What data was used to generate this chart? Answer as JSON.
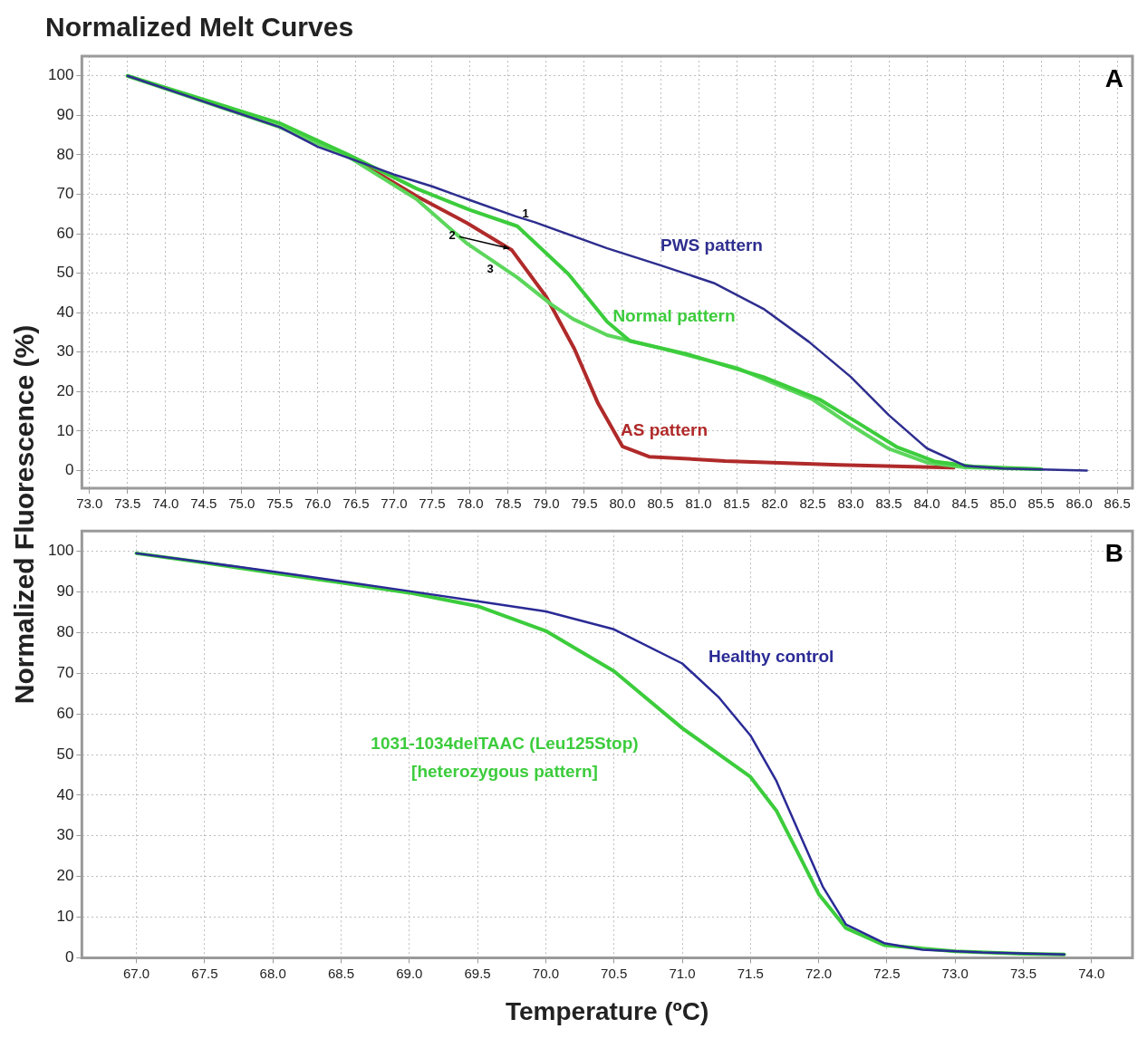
{
  "chart_data": [
    {
      "type": "line",
      "title": "Normalized Melt Curves",
      "ylabel": "Normalized Fluorescence (%)",
      "xlim": [
        72.9,
        86.7
      ],
      "ylim": [
        -4.5,
        105
      ],
      "xticks": [
        {
          "value": 73,
          "label": "73.0"
        },
        {
          "value": 73.5,
          "label": "73.5"
        },
        {
          "value": 74,
          "label": "74.0"
        },
        {
          "value": 74.5,
          "label": "74.5"
        },
        {
          "value": 75,
          "label": "75.0"
        },
        {
          "value": 75.5,
          "label": "75.5"
        },
        {
          "value": 76,
          "label": "76.0"
        },
        {
          "value": 76.5,
          "label": "76.5"
        },
        {
          "value": 77,
          "label": "77.0"
        },
        {
          "value": 77.5,
          "label": "77.5"
        },
        {
          "value": 78,
          "label": "78.0"
        },
        {
          "value": 78.5,
          "label": "78.5"
        },
        {
          "value": 79,
          "label": "79.0"
        },
        {
          "value": 79.5,
          "label": "79.5"
        },
        {
          "value": 80,
          "label": "80.0"
        },
        {
          "value": 80.5,
          "label": "80.5"
        },
        {
          "value": 81,
          "label": "81.0"
        },
        {
          "value": 81.5,
          "label": "81.5"
        },
        {
          "value": 82,
          "label": "82.0"
        },
        {
          "value": 82.5,
          "label": "82.5"
        },
        {
          "value": 83,
          "label": "83.0"
        },
        {
          "value": 83.5,
          "label": "83.5"
        },
        {
          "value": 84,
          "label": "84.0"
        },
        {
          "value": 84.5,
          "label": "84.5"
        },
        {
          "value": 85,
          "label": "85.0"
        },
        {
          "value": 85.5,
          "label": "85.5"
        },
        {
          "value": 86,
          "label": "86.0"
        },
        {
          "value": 86.5,
          "label": "86.5"
        }
      ],
      "yticks": [
        0,
        10,
        20,
        30,
        40,
        50,
        60,
        70,
        80,
        90,
        100
      ],
      "grid": true,
      "legend": false,
      "marker": "none",
      "line_style": "solid",
      "annotations": [
        "A",
        "1",
        {
          "text": "2",
          "x": 78.55,
          "y": 55.8
        },
        "3"
      ],
      "series": [
        {
          "name": "PWS pattern",
          "color": "#2e2e8f",
          "x": [
            73.5,
            74.5,
            75.5,
            76.0,
            77.0,
            77.5,
            78.0,
            78.6,
            78.85,
            79.8,
            80.5,
            81.2,
            81.85,
            82.45,
            83.0,
            83.5,
            84.0,
            84.5,
            85.0,
            86.1
          ],
          "values": [
            100,
            93.5,
            87,
            82,
            75,
            72,
            68.5,
            64.4,
            62.9,
            56.3,
            52,
            47.5,
            41,
            32.6,
            23.7,
            14,
            5.6,
            1.2,
            0.5,
            0
          ]
        },
        {
          "name": "Normal pattern",
          "color": "#3ccc3c",
          "x": [
            73.5,
            74.5,
            75.5,
            76.4,
            77.3,
            78.0,
            78.62,
            79.29,
            79.8,
            80.1,
            80.85,
            81.85,
            82.6,
            83.1,
            83.6,
            84.1,
            84.6,
            85.5
          ],
          "values": [
            100,
            94,
            88,
            80,
            71.4,
            66,
            61.9,
            49.8,
            37.7,
            32.8,
            29.5,
            23.7,
            17.9,
            12,
            6,
            2.3,
            1,
            0.3
          ]
        },
        {
          "color": "#5cd65c",
          "x": [
            73.5,
            74.5,
            75.5,
            76.4,
            77.3,
            77.96,
            78.62,
            79.07,
            79.35,
            79.8,
            80.5,
            81.5,
            82.5,
            83.0,
            83.5,
            84.0,
            84.5,
            85.5
          ],
          "values": [
            100,
            93.5,
            87,
            79.5,
            68.7,
            57.5,
            48.9,
            42,
            38.4,
            34.3,
            31,
            26,
            18,
            11.5,
            5.5,
            2,
            0.8,
            0.3
          ]
        },
        {
          "name": "AS pattern",
          "color": "#b02a2a",
          "x": [
            76.6,
            77.3,
            77.96,
            78.55,
            79.0,
            79.37,
            79.68,
            80.0,
            80.35,
            81.35,
            82.85,
            84.35
          ],
          "values": [
            77.5,
            69.5,
            62.7,
            55.8,
            44,
            30.8,
            17,
            6.1,
            3.5,
            2.4,
            1.4,
            0.7
          ]
        }
      ]
    },
    {
      "type": "line",
      "xlabel": "Temperature (ºC)",
      "xlim": [
        66.6,
        74.3
      ],
      "ylim": [
        0,
        105
      ],
      "xticks": [
        {
          "value": 67,
          "label": "67.0"
        },
        {
          "value": 67.5,
          "label": "67.5"
        },
        {
          "value": 68,
          "label": "68.0"
        },
        {
          "value": 68.5,
          "label": "68.5"
        },
        {
          "value": 69,
          "label": "69.0"
        },
        {
          "value": 69.5,
          "label": "69.5"
        },
        {
          "value": 70,
          "label": "70.0"
        },
        {
          "value": 70.5,
          "label": "70.5"
        },
        {
          "value": 71,
          "label": "71.0"
        },
        {
          "value": 71.5,
          "label": "71.5"
        },
        {
          "value": 72,
          "label": "72.0"
        },
        {
          "value": 72.5,
          "label": "72.5"
        },
        {
          "value": 73,
          "label": "73.0"
        },
        {
          "value": 73.5,
          "label": "73.5"
        },
        {
          "value": 74,
          "label": "74.0"
        }
      ],
      "yticks": [
        0,
        10,
        20,
        30,
        40,
        50,
        60,
        70,
        80,
        90,
        100
      ],
      "grid": true,
      "legend": false,
      "marker": "none",
      "line_style": "solid",
      "annotations": [
        "B"
      ],
      "series": [
        {
          "name": "Healthy control",
          "color": "#2a2a96",
          "x": [
            67.0,
            67.5,
            68.0,
            68.5,
            69.0,
            69.5,
            70.0,
            70.5,
            71.0,
            71.27,
            71.5,
            71.69,
            71.86,
            72.03,
            72.2,
            72.48,
            72.76,
            73.2,
            73.8
          ],
          "values": [
            99.5,
            97.3,
            95,
            92.6,
            90.2,
            87.7,
            85.2,
            80.8,
            72.4,
            64,
            54.7,
            43.5,
            30.5,
            17.5,
            8.2,
            3.6,
            2,
            1.3,
            0.8
          ]
        },
        {
          "name": "1031-1034delTAAC (Leu125Stop)\n[heterozygous pattern]",
          "color": "#3ccc3c",
          "x": [
            67.0,
            67.5,
            68.0,
            68.5,
            69.0,
            69.5,
            70.0,
            70.5,
            71.0,
            71.5,
            71.69,
            71.86,
            72.0,
            72.2,
            72.48,
            73.0,
            73.5,
            73.8
          ],
          "values": [
            99.5,
            97.2,
            94.7,
            92.3,
            89.8,
            86.5,
            80.4,
            70.5,
            56.5,
            44.5,
            36.2,
            25,
            15.7,
            7.3,
            3.1,
            1.6,
            1.0,
            0.8
          ]
        }
      ]
    }
  ]
}
